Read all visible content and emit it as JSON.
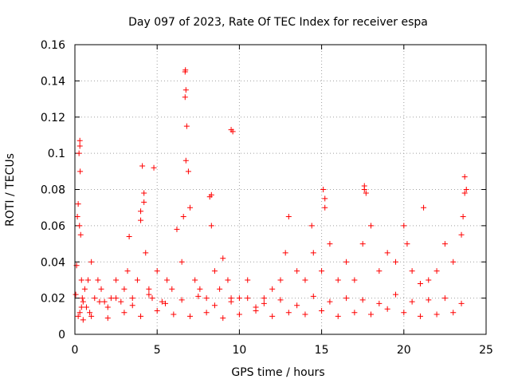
{
  "chart_data": {
    "type": "scatter",
    "title": "Day 097 of 2023, Rate Of TEC Index for receiver espa",
    "xlabel": "GPS time / hours",
    "ylabel": "ROTI / TECUs",
    "xlim": [
      0,
      25
    ],
    "ylim": [
      0,
      0.16
    ],
    "xticks": [
      0,
      5,
      10,
      15,
      20,
      25
    ],
    "xtick_labels": [
      "0",
      "5",
      "10",
      "15",
      "20",
      "25"
    ],
    "yticks": [
      0,
      0.02,
      0.04,
      0.06,
      0.08,
      0.1,
      0.12,
      0.14,
      0.16
    ],
    "ytick_labels": [
      "0",
      "0.02",
      "0.04",
      "0.06",
      "0.08",
      "0.1",
      "0.12",
      "0.14",
      "0.16"
    ],
    "grid": true,
    "marker": "+",
    "marker_color": "#ff0000",
    "series": [
      {
        "name": "ROTI",
        "x": [
          0.05,
          0.1,
          0.15,
          0.2,
          0.25,
          0.3,
          0.32,
          0.35,
          0.4,
          0.45,
          0.5,
          0.6,
          0.7,
          0.8,
          0.9,
          1.0,
          1.2,
          1.4,
          1.6,
          1.8,
          2.0,
          2.2,
          2.5,
          2.8,
          3.0,
          3.2,
          3.5,
          3.8,
          4.0,
          4.1,
          4.2,
          4.3,
          4.5,
          4.7,
          5.0,
          5.3,
          5.6,
          5.9,
          6.2,
          6.5,
          6.6,
          6.7,
          6.75,
          6.8,
          6.9,
          7.0,
          7.3,
          7.6,
          8.0,
          8.2,
          8.3,
          8.5,
          8.8,
          9.0,
          9.3,
          9.5,
          9.6,
          10.0,
          10.5,
          11.0,
          11.5,
          12.0,
          12.5,
          12.8,
          13.0,
          13.5,
          14.0,
          14.5,
          15.0,
          15.1,
          15.2,
          15.5,
          16.0,
          16.5,
          17.0,
          17.5,
          17.6,
          17.7,
          18.0,
          18.5,
          19.0,
          19.5,
          20.0,
          20.2,
          20.5,
          21.0,
          21.5,
          22.0,
          22.5,
          23.0,
          23.5,
          23.6,
          23.7,
          23.8,
          0.2,
          0.3,
          0.5,
          1.0,
          2.0,
          3.0,
          4.0,
          5.0,
          6.0,
          7.0,
          8.0,
          9.0,
          10.0,
          11.0,
          12.0,
          13.0,
          14.0,
          15.0,
          16.0,
          17.0,
          18.0,
          19.0,
          20.0,
          21.0,
          22.0,
          23.0,
          0.4,
          1.5,
          2.5,
          3.5,
          4.5,
          5.5,
          6.5,
          7.5,
          8.5,
          9.5,
          10.5,
          11.5,
          12.5,
          13.5,
          14.5,
          15.5,
          16.5,
          17.5,
          18.5,
          19.5,
          20.5,
          21.5,
          22.5,
          23.5,
          0.3,
          0.28,
          4.0,
          4.2,
          6.7,
          6.72,
          6.75,
          9.5,
          4.8,
          17.6,
          15.2,
          23.7,
          8.3,
          21.2,
          3.3,
          14.4
        ],
        "y": [
          0.022,
          0.038,
          0.065,
          0.072,
          0.1,
          0.107,
          0.09,
          0.055,
          0.03,
          0.02,
          0.018,
          0.025,
          0.015,
          0.03,
          0.012,
          0.04,
          0.02,
          0.03,
          0.025,
          0.018,
          0.015,
          0.02,
          0.03,
          0.018,
          0.025,
          0.035,
          0.02,
          0.03,
          0.068,
          0.093,
          0.078,
          0.045,
          0.025,
          0.02,
          0.035,
          0.018,
          0.03,
          0.025,
          0.058,
          0.04,
          0.065,
          0.145,
          0.135,
          0.115,
          0.09,
          0.07,
          0.03,
          0.025,
          0.02,
          0.076,
          0.06,
          0.035,
          0.025,
          0.042,
          0.03,
          0.02,
          0.112,
          0.02,
          0.03,
          0.015,
          0.02,
          0.025,
          0.03,
          0.045,
          0.065,
          0.035,
          0.03,
          0.045,
          0.035,
          0.08,
          0.07,
          0.05,
          0.03,
          0.04,
          0.03,
          0.05,
          0.082,
          0.078,
          0.06,
          0.035,
          0.045,
          0.04,
          0.06,
          0.05,
          0.035,
          0.028,
          0.03,
          0.035,
          0.05,
          0.04,
          0.055,
          0.065,
          0.087,
          0.08,
          0.01,
          0.012,
          0.008,
          0.01,
          0.009,
          0.012,
          0.01,
          0.013,
          0.011,
          0.01,
          0.012,
          0.009,
          0.011,
          0.013,
          0.01,
          0.012,
          0.011,
          0.013,
          0.01,
          0.012,
          0.011,
          0.014,
          0.012,
          0.01,
          0.011,
          0.012,
          0.015,
          0.018,
          0.02,
          0.016,
          0.022,
          0.017,
          0.019,
          0.021,
          0.016,
          0.018,
          0.02,
          0.017,
          0.019,
          0.016,
          0.021,
          0.018,
          0.02,
          0.019,
          0.017,
          0.022,
          0.018,
          0.019,
          0.02,
          0.017,
          0.104,
          0.06,
          0.063,
          0.073,
          0.131,
          0.146,
          0.096,
          0.113,
          0.092,
          0.08,
          0.075,
          0.078,
          0.077,
          0.07,
          0.054,
          0.06
        ]
      }
    ]
  }
}
